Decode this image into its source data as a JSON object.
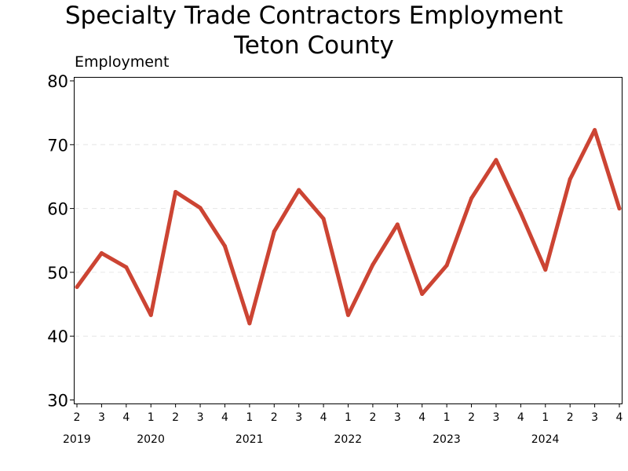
{
  "chart_data": {
    "type": "line",
    "title": "Specialty Trade Contractors Employment",
    "subtitle": "Teton County",
    "ylabel": "Employment",
    "xlabel": "",
    "ylim": [
      30,
      80
    ],
    "yticks": [
      30,
      40,
      50,
      60,
      70,
      80
    ],
    "grid": "horizontal dashed",
    "line_color": "#CC4433",
    "x": [
      "2019 Q2",
      "2019 Q3",
      "2019 Q4",
      "2020 Q1",
      "2020 Q2",
      "2020 Q3",
      "2020 Q4",
      "2021 Q1",
      "2021 Q2",
      "2021 Q3",
      "2021 Q4",
      "2022 Q1",
      "2022 Q2",
      "2022 Q3",
      "2022 Q4",
      "2023 Q1",
      "2023 Q2",
      "2023 Q3",
      "2023 Q4",
      "2024 Q1",
      "2024 Q2",
      "2024 Q3",
      "2024 Q4"
    ],
    "quarter_labels": [
      "2",
      "3",
      "4",
      "1",
      "2",
      "3",
      "4",
      "1",
      "2",
      "3",
      "4",
      "1",
      "2",
      "3",
      "4",
      "1",
      "2",
      "3",
      "4",
      "1",
      "2",
      "3",
      "4"
    ],
    "year_labels": [
      {
        "label": "2019",
        "index": 0
      },
      {
        "label": "2020",
        "index": 3
      },
      {
        "label": "2021",
        "index": 7
      },
      {
        "label": "2022",
        "index": 11
      },
      {
        "label": "2023",
        "index": 15
      },
      {
        "label": "2024",
        "index": 19
      }
    ],
    "series": [
      {
        "values": [
          47.7,
          53.0,
          50.8,
          43.3,
          62.6,
          60.1,
          54.1,
          42.0,
          56.4,
          62.9,
          58.4,
          43.3,
          51.2,
          57.5,
          46.6,
          51.1,
          61.6,
          67.6,
          59.3,
          50.4,
          64.6,
          72.3,
          60.0
        ]
      }
    ]
  }
}
